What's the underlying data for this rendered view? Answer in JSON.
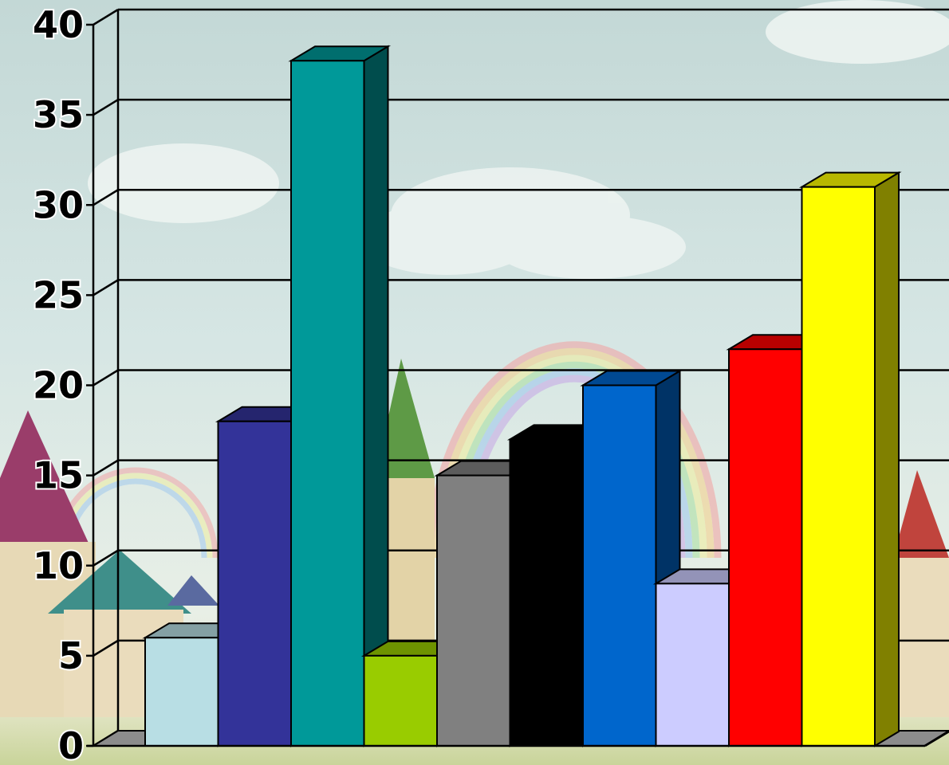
{
  "chart_data": {
    "type": "bar",
    "style": "3d",
    "title": "",
    "xlabel": "",
    "ylabel": "",
    "ylim": [
      0,
      40
    ],
    "yticks": [
      0,
      5,
      10,
      15,
      20,
      25,
      30,
      35,
      40
    ],
    "yticks_text": [
      "0",
      "5",
      "10",
      "15",
      "20",
      "25",
      "30",
      "35",
      "40"
    ],
    "grid": true,
    "legend": "none",
    "values": [
      6,
      18,
      38,
      5,
      15,
      17,
      20,
      9,
      22,
      31
    ],
    "colors": [
      "#b8dee4",
      "#333399",
      "#009999",
      "#99cc00",
      "#808080",
      "#000000",
      "#0066cc",
      "#ccccff",
      "#ff0000",
      "#ffff00"
    ]
  }
}
